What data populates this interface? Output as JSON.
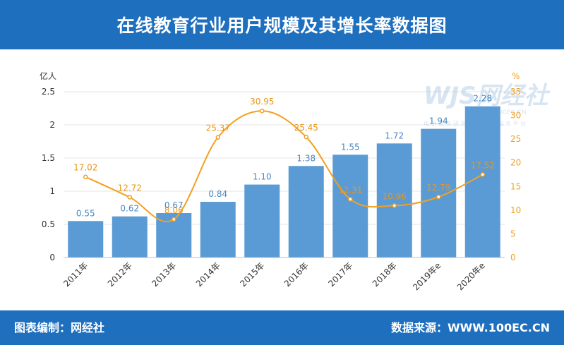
{
  "header": {
    "title": "在线教育行业用户规模及其增长率数据图"
  },
  "footer": {
    "left": "图表编制：网经社",
    "right": "数据来源：WWW.100EC.CN"
  },
  "watermark": {
    "logo": "WJS网经社",
    "url": "WWW.100EC.CN",
    "tagline": "电 子 商 务 研 究 中 心 经 济 服 务 平 台"
  },
  "colors": {
    "bar": "#5b9bd5",
    "line": "#f2a020",
    "header": "#1f6fbf",
    "bar_label": "#4a87c0",
    "line_label": "#e8951a"
  },
  "chart_data": {
    "type": "bar",
    "categories": [
      "2011年",
      "2012年",
      "2013年",
      "2014年",
      "2015年",
      "2016年",
      "2017年",
      "2018年",
      "2019年e",
      "2020年e"
    ],
    "series": [
      {
        "values": [
          0.55,
          0.62,
          0.67,
          0.84,
          1.1,
          1.38,
          1.55,
          1.72,
          1.94,
          2.28
        ],
        "labels": [
          "0.55",
          "0.62",
          "0.67",
          "0.84",
          "1.10",
          "1.38",
          "1.55",
          "1.72",
          "1.94",
          "2.28"
        ],
        "axis": "left",
        "type": "bar"
      },
      {
        "values": [
          17.02,
          12.72,
          8.06,
          25.37,
          30.95,
          25.45,
          12.31,
          10.96,
          12.79,
          17.52
        ],
        "labels": [
          "17.02",
          "12.72",
          "8.06",
          "25.37",
          "30.95",
          "25.45",
          "12.31",
          "10.96",
          "12.79",
          "17.52"
        ],
        "axis": "right",
        "type": "line"
      }
    ],
    "y_left": {
      "label": "亿人",
      "range": [
        0,
        2.5
      ],
      "ticks": [
        "0",
        "0.5",
        "1",
        "1.5",
        "2",
        "2.5"
      ]
    },
    "y_right": {
      "label": "%",
      "range": [
        0,
        35
      ],
      "ticks": [
        "0",
        "5",
        "10",
        "15",
        "20",
        "25",
        "30",
        "35"
      ]
    },
    "grid": true,
    "legend": "none"
  }
}
